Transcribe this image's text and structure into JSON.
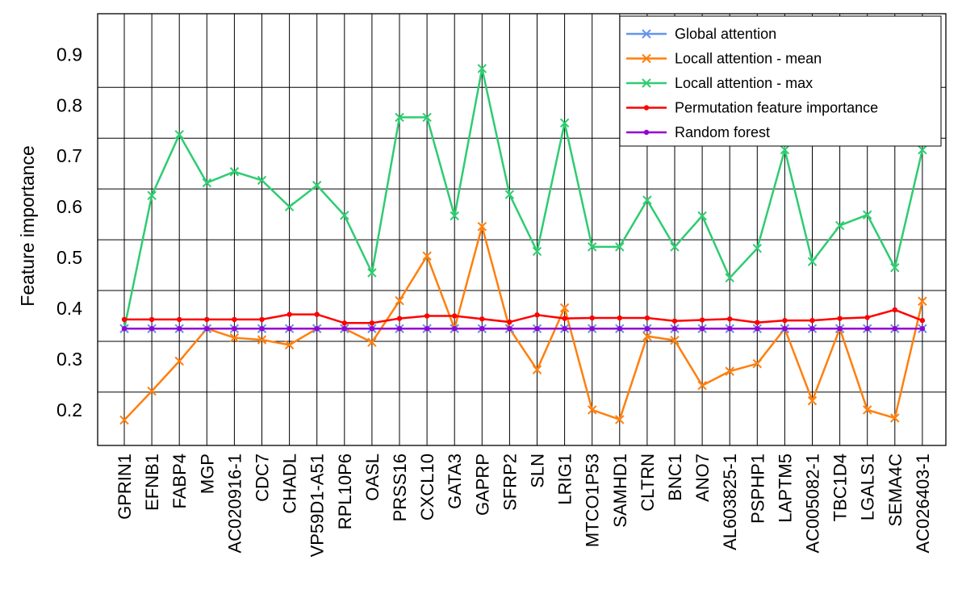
{
  "chart_data": {
    "type": "line",
    "title": "",
    "xlabel": "",
    "ylabel": "Feature importance",
    "ylim": [
      0.13,
      0.98
    ],
    "yticks": [
      0.2,
      0.3,
      0.4,
      0.5,
      0.6,
      0.7,
      0.8,
      0.9
    ],
    "grid": true,
    "legend_position": "top-right",
    "categories": [
      "GPRIN1",
      "EFNB1",
      "FABP4",
      "MGP",
      "AC020916-1",
      "CDC7",
      "CHADL",
      "VP59D1-A51",
      "RPL10P6",
      "OASL",
      "PRSS16",
      "CXCL10",
      "GATA3",
      "GAPRP",
      "SFRP2",
      "SLN",
      "LRIG1",
      "MTCO1P53",
      "SAMHD1",
      "CLTRN",
      "BNC1",
      "ANO7",
      "AL603825-1",
      "PSPHP1",
      "LAPTM5",
      "AC005082-1",
      "TBC1D4",
      "LGALS1",
      "SEMA4C",
      "AC026403-1"
    ],
    "series": [
      {
        "name": "Global attention",
        "color": "#6495ed",
        "marker": "x",
        "values": [
          0.36,
          0.36,
          0.36,
          0.36,
          0.36,
          0.36,
          0.36,
          0.36,
          0.36,
          0.36,
          0.36,
          0.36,
          0.36,
          0.36,
          0.36,
          0.36,
          0.36,
          0.36,
          0.36,
          0.36,
          0.36,
          0.36,
          0.36,
          0.36,
          0.36,
          0.36,
          0.36,
          0.36,
          0.36,
          0.36
        ]
      },
      {
        "name": "Locall attention - mean",
        "color": "#ff7f0e",
        "marker": "x",
        "values": [
          0.18,
          0.237,
          0.296,
          0.36,
          0.342,
          0.338,
          0.328,
          0.36,
          0.36,
          0.333,
          0.415,
          0.503,
          0.36,
          0.561,
          0.36,
          0.279,
          0.401,
          0.2,
          0.181,
          0.345,
          0.337,
          0.248,
          0.276,
          0.291,
          0.36,
          0.218,
          0.36,
          0.2,
          0.184,
          0.414
        ]
      },
      {
        "name": "Locall attention - max",
        "color": "#2ecc71",
        "marker": "x",
        "values": [
          0.36,
          0.622,
          0.742,
          0.647,
          0.669,
          0.652,
          0.6,
          0.642,
          0.583,
          0.47,
          0.776,
          0.776,
          0.582,
          0.872,
          0.624,
          0.512,
          0.765,
          0.521,
          0.521,
          0.613,
          0.521,
          0.582,
          0.46,
          0.518,
          0.712,
          0.492,
          0.563,
          0.584,
          0.48,
          0.712
        ]
      },
      {
        "name": "Permutation feature importance",
        "color": "#ff0000",
        "marker": "o",
        "values": [
          0.378,
          0.378,
          0.378,
          0.378,
          0.378,
          0.378,
          0.388,
          0.388,
          0.371,
          0.371,
          0.38,
          0.385,
          0.385,
          0.379,
          0.373,
          0.387,
          0.38,
          0.381,
          0.381,
          0.381,
          0.375,
          0.377,
          0.379,
          0.372,
          0.376,
          0.376,
          0.38,
          0.382,
          0.397,
          0.376
        ]
      },
      {
        "name": "Random forest",
        "color": "#9400d3",
        "marker": "o",
        "values": [
          0.36,
          0.36,
          0.36,
          0.36,
          0.36,
          0.36,
          0.36,
          0.36,
          0.36,
          0.36,
          0.36,
          0.36,
          0.36,
          0.36,
          0.36,
          0.36,
          0.36,
          0.36,
          0.36,
          0.36,
          0.36,
          0.36,
          0.36,
          0.36,
          0.36,
          0.36,
          0.36,
          0.36,
          0.36,
          0.36
        ]
      }
    ]
  }
}
